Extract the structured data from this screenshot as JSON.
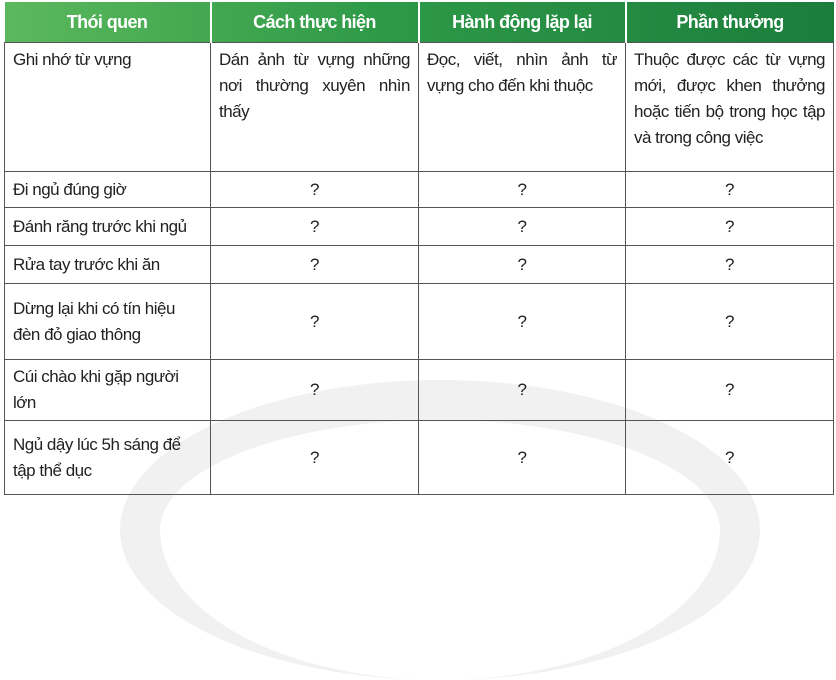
{
  "headers": [
    "Thói quen",
    "Cách thực hiện",
    "Hành động lặp lại",
    "Phần thưởng"
  ],
  "header_gradient": [
    "#5cb85c",
    "#1b7d3c"
  ],
  "rows": [
    [
      "Ghi nhớ từ vựng",
      "Dán ảnh từ vựng những nơi thường xuyên nhìn thấy",
      "Đọc, viết, nhìn ảnh từ vựng cho đến khi thuộc",
      "Thuộc được các từ vựng mới, được khen thưởng hoặc tiến bộ trong học tập và trong công việc"
    ],
    [
      "Đi ngủ đúng giờ",
      "?",
      "?",
      "?"
    ],
    [
      "Đánh răng trước khi ngủ",
      "?",
      "?",
      "?"
    ],
    [
      "Rửa tay trước khi ăn",
      "?",
      "?",
      "?"
    ],
    [
      "Dừng lại khi có tín hiệu đèn đỏ giao thông",
      "?",
      "?",
      "?"
    ],
    [
      "Cúi chào khi gặp người lớn",
      "?",
      "?",
      "?"
    ],
    [
      "Ngủ dậy lúc 5h sáng để tập thể dục",
      "?",
      "?",
      "?"
    ]
  ]
}
